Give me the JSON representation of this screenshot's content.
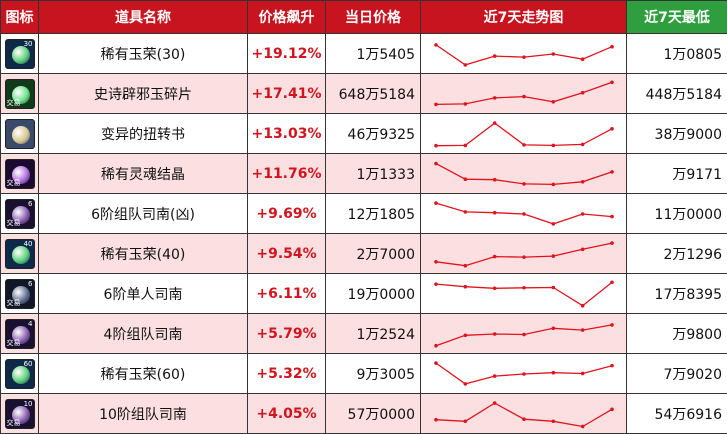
{
  "headers": {
    "icon": "图标",
    "name": "道具名称",
    "change": "价格飙升",
    "price": "当日价格",
    "trend": "近7天走势图",
    "low": "近7天最低"
  },
  "colors": {
    "header_red": "#c8141f",
    "header_green": "#2e9e3e",
    "row_pink": "#fbdfe1",
    "up_red": "#d3141e",
    "trend_line": "#e0141e"
  },
  "rows": [
    {
      "icon": "rare-jade-icon",
      "icon_level": "30",
      "tradable": "",
      "name": "稀有玉荣(30)",
      "change": "+19.12%",
      "price": "1万5405",
      "low": "1万0805",
      "trend": [
        0.85,
        0.08,
        0.42,
        0.38,
        0.5,
        0.3,
        0.78
      ]
    },
    {
      "icon": "epic-jade-fragment-icon",
      "icon_level": "",
      "tradable": "交易",
      "name": "史诗辟邪玉碎片",
      "change": "+17.41%",
      "price": "648万5184",
      "low": "448万5184",
      "trend": [
        0.1,
        0.12,
        0.35,
        0.4,
        0.2,
        0.55,
        0.95
      ]
    },
    {
      "icon": "twisted-book-icon",
      "icon_level": "",
      "tradable": "",
      "name": "变异的扭转书",
      "change": "+13.03%",
      "price": "46万9325",
      "low": "38万9000",
      "trend": [
        0.05,
        0.06,
        0.92,
        0.08,
        0.06,
        0.1,
        0.7
      ]
    },
    {
      "icon": "soul-crystal-icon",
      "icon_level": "",
      "tradable": "交易",
      "name": "稀有灵魂结晶",
      "change": "+11.76%",
      "price": "1万1333",
      "low": "万9171",
      "trend": [
        0.9,
        0.3,
        0.28,
        0.12,
        0.1,
        0.2,
        0.58
      ]
    },
    {
      "icon": "raid-sinan-icon",
      "icon_level": "6",
      "tradable": "交易",
      "name": "6阶组队司南(凶)",
      "change": "+9.69%",
      "price": "12万1805",
      "low": "11万0000",
      "trend": [
        0.92,
        0.58,
        0.55,
        0.5,
        0.12,
        0.5,
        0.4
      ]
    },
    {
      "icon": "rare-jade-icon",
      "icon_level": "40",
      "tradable": "",
      "name": "稀有玉荣(40)",
      "change": "+9.54%",
      "price": "2万7000",
      "low": "2万1296",
      "trend": [
        0.2,
        0.05,
        0.4,
        0.38,
        0.42,
        0.68,
        0.92
      ]
    },
    {
      "icon": "solo-sinan-icon",
      "icon_level": "6",
      "tradable": "交易",
      "name": "6阶单人司南",
      "change": "+6.11%",
      "price": "19万0000",
      "low": "17万8395",
      "trend": [
        0.88,
        0.78,
        0.72,
        0.74,
        0.75,
        0.05,
        0.95
      ]
    },
    {
      "icon": "raid-sinan-icon",
      "icon_level": "4",
      "tradable": "交易",
      "name": "4阶组队司南",
      "change": "+5.79%",
      "price": "1万2524",
      "low": "万9800",
      "trend": [
        0.05,
        0.45,
        0.5,
        0.48,
        0.72,
        0.65,
        0.85
      ]
    },
    {
      "icon": "rare-jade-icon",
      "icon_level": "60",
      "tradable": "",
      "name": "稀有玉荣(60)",
      "change": "+5.32%",
      "price": "9万3005",
      "low": "7万9020",
      "trend": [
        0.92,
        0.12,
        0.42,
        0.5,
        0.55,
        0.52,
        0.82
      ]
    },
    {
      "icon": "raid-sinan-icon",
      "icon_level": "10",
      "tradable": "交易",
      "name": "10阶组队司南",
      "change": "+4.05%",
      "price": "57万0000",
      "low": "54万6916",
      "trend": [
        0.28,
        0.22,
        0.92,
        0.3,
        0.22,
        0.02,
        0.68
      ]
    }
  ]
}
